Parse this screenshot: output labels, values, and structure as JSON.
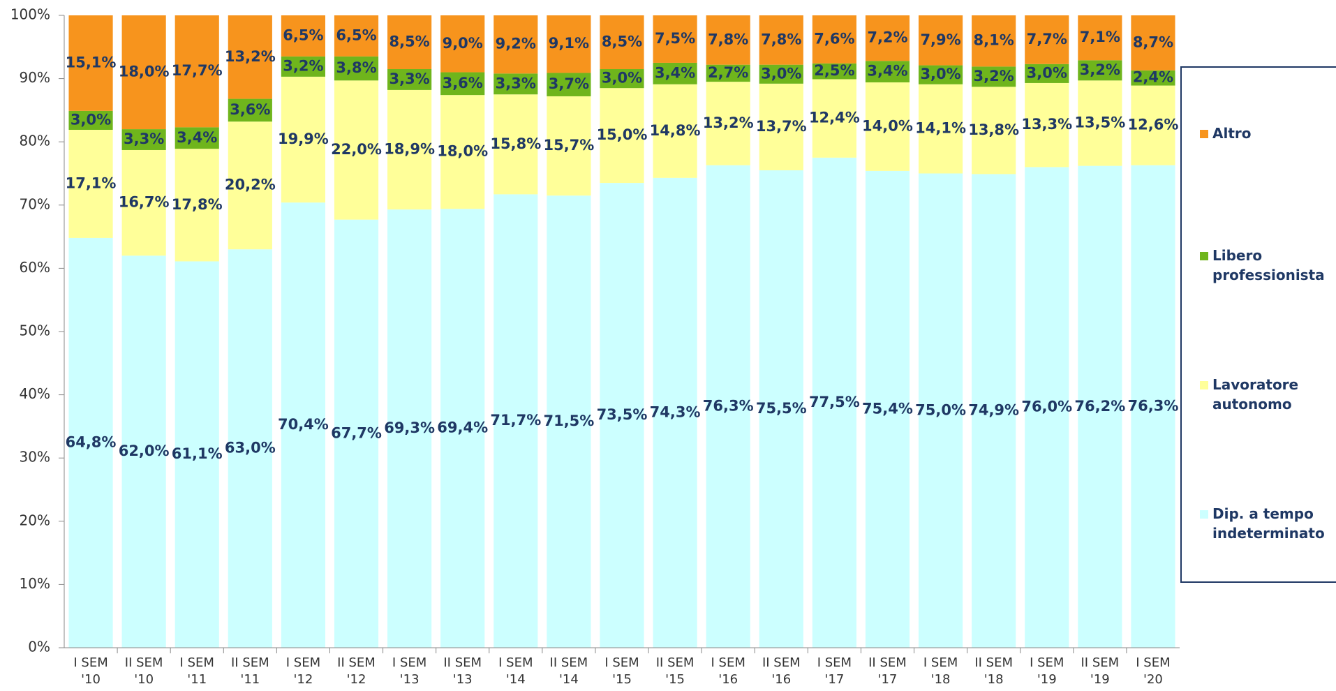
{
  "chart_data": {
    "type": "stacked_bar",
    "categories": [
      "I SEM '10",
      "II SEM '10",
      "I SEM '11",
      "II SEM '11",
      "I SEM '12",
      "II SEM '12",
      "I SEM '13",
      "II SEM '13",
      "I SEM '14",
      "II SEM '14",
      "I SEM '15",
      "II SEM '15",
      "I SEM '16",
      "II SEM '16",
      "I SEM '17",
      "II SEM '17",
      "I SEM '18",
      "II SEM '18",
      "I SEM '19",
      "II SEM '19",
      "I SEM '20"
    ],
    "series": [
      {
        "name": "Dip. a tempo indeterminato",
        "color": "#ccffff",
        "values": [
          64.8,
          62.0,
          61.1,
          63.0,
          70.4,
          67.7,
          69.3,
          69.4,
          71.7,
          71.5,
          73.5,
          74.3,
          76.3,
          75.5,
          77.5,
          75.4,
          75.0,
          74.9,
          76.0,
          76.2,
          76.3
        ],
        "value_labels": [
          "64,8%",
          "62,0%",
          "61,1%",
          "63,0%",
          "70,4%",
          "67,7%",
          "69,3%",
          "69,4%",
          "71,7%",
          "71,5%",
          "73,5%",
          "74,3%",
          "76,3%",
          "75,5%",
          "77,5%",
          "75,4%",
          "75,0%",
          "74,9%",
          "76,0%",
          "76,2%",
          "76,3%"
        ]
      },
      {
        "name": "Lavoratore autonomo",
        "color": "#ffff99",
        "values": [
          17.1,
          16.7,
          17.8,
          20.2,
          19.9,
          22.0,
          18.9,
          18.0,
          15.8,
          15.7,
          15.0,
          14.8,
          13.2,
          13.7,
          12.4,
          14.0,
          14.1,
          13.8,
          13.3,
          13.5,
          12.6
        ],
        "value_labels": [
          "17,1%",
          "16,7%",
          "17,8%",
          "20,2%",
          "19,9%",
          "22,0%",
          "18,9%",
          "18,0%",
          "15,8%",
          "15,7%",
          "15,0%",
          "14,8%",
          "13,2%",
          "13,7%",
          "12,4%",
          "14,0%",
          "14,1%",
          "13,8%",
          "13,3%",
          "13,5%",
          "12,6%"
        ]
      },
      {
        "name": "Libero professionista",
        "color": "#6fb51c",
        "values": [
          3.0,
          3.3,
          3.4,
          3.6,
          3.2,
          3.8,
          3.3,
          3.6,
          3.3,
          3.7,
          3.0,
          3.4,
          2.7,
          3.0,
          2.5,
          3.4,
          3.0,
          3.2,
          3.0,
          3.2,
          2.4
        ],
        "value_labels": [
          "3,0%",
          "3,3%",
          "3,4%",
          "3,6%",
          "3,2%",
          "3,8%",
          "3,3%",
          "3,6%",
          "3,3%",
          "3,7%",
          "3,0%",
          "3,4%",
          "2,7%",
          "3,0%",
          "2,5%",
          "3,4%",
          "3,0%",
          "3,2%",
          "3,0%",
          "3,2%",
          "2,4%"
        ]
      },
      {
        "name": "Altro",
        "color": "#f7941d",
        "values": [
          15.1,
          18.0,
          17.7,
          13.2,
          6.5,
          6.5,
          8.5,
          9.0,
          9.2,
          9.1,
          8.5,
          7.5,
          7.8,
          7.8,
          7.6,
          7.2,
          7.9,
          8.1,
          7.7,
          7.1,
          8.7
        ],
        "value_labels": [
          "15,1%",
          "18,0%",
          "17,7%",
          "13,2%",
          "6,5%",
          "6,5%",
          "8,5%",
          "9,0%",
          "9,2%",
          "9,1%",
          "8,5%",
          "7,5%",
          "7,8%",
          "7,8%",
          "7,6%",
          "7,2%",
          "7,9%",
          "8,1%",
          "7,7%",
          "7,1%",
          "8,7%"
        ]
      }
    ],
    "ylim": [
      0,
      100
    ],
    "yticks": [
      {
        "value": 0,
        "label": "0%"
      },
      {
        "value": 10,
        "label": "10%"
      },
      {
        "value": 20,
        "label": "20%"
      },
      {
        "value": 30,
        "label": "30%"
      },
      {
        "value": 40,
        "label": "40%"
      },
      {
        "value": 50,
        "label": "50%"
      },
      {
        "value": 60,
        "label": "60%"
      },
      {
        "value": 70,
        "label": "70%"
      },
      {
        "value": 80,
        "label": "80%"
      },
      {
        "value": 90,
        "label": "90%"
      },
      {
        "value": 100,
        "label": "100%"
      }
    ],
    "legend": "right",
    "legend_order": "reversed"
  }
}
